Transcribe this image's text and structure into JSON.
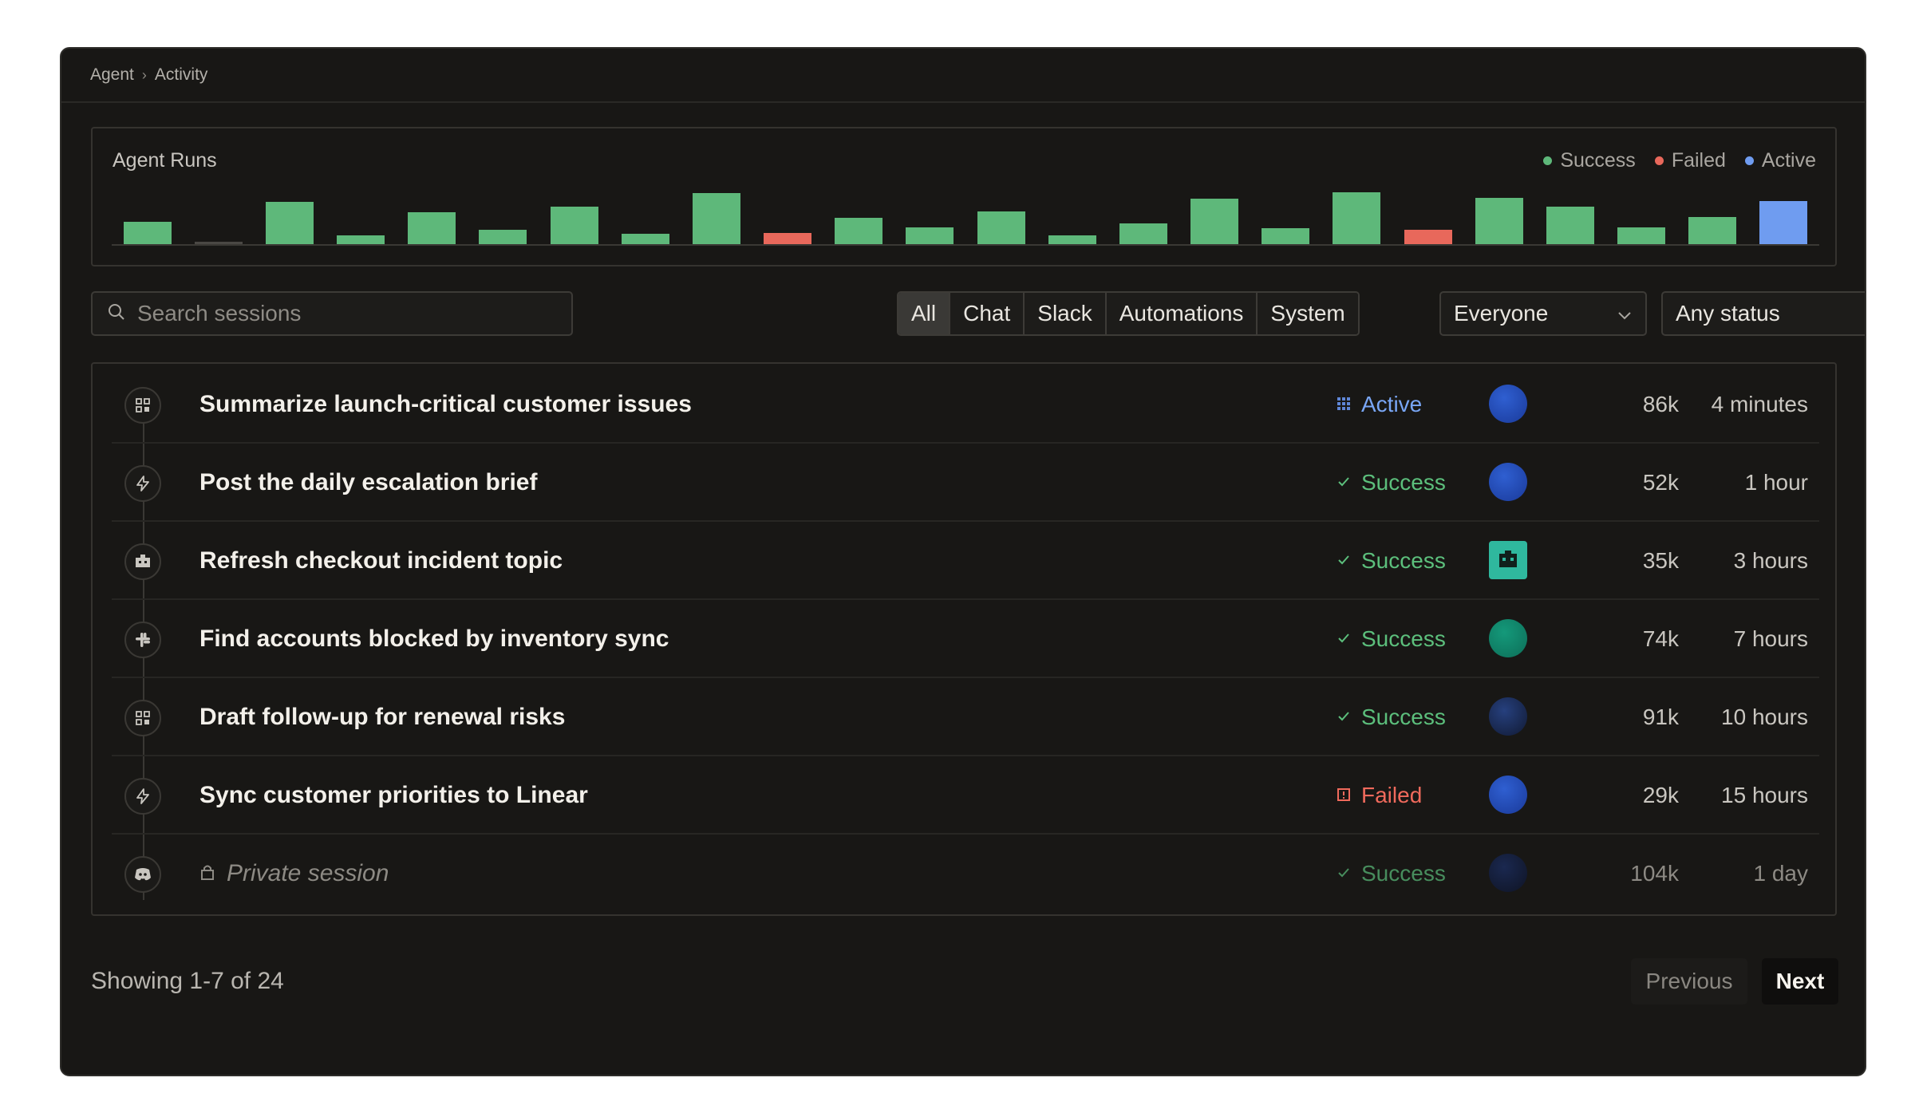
{
  "breadcrumb": {
    "parent": "Agent",
    "separator": "›",
    "current": "Activity"
  },
  "chart": {
    "title": "Agent Runs",
    "legend": [
      {
        "label": "Success",
        "color": "#5eb87a"
      },
      {
        "label": "Failed",
        "color": "#e8685b"
      },
      {
        "label": "Active",
        "color": "#6f9cf0"
      }
    ]
  },
  "chart_data": {
    "type": "bar",
    "title": "Agent Runs",
    "colors": {
      "success": "#5eb87a",
      "failed": "#e8685b",
      "active": "#6f9cf0",
      "empty": "#4a4844"
    },
    "values": [
      20,
      2,
      37,
      8,
      28,
      13,
      33,
      9,
      45,
      10,
      23,
      15,
      29,
      8,
      18,
      40,
      14,
      46,
      13,
      41,
      33,
      15,
      24,
      38
    ],
    "statuses": [
      "success",
      "empty",
      "success",
      "success",
      "success",
      "success",
      "success",
      "success",
      "success",
      "failed",
      "success",
      "success",
      "success",
      "success",
      "success",
      "success",
      "success",
      "success",
      "failed",
      "success",
      "success",
      "success",
      "success",
      "active"
    ],
    "ylim": [
      0,
      50
    ]
  },
  "search": {
    "placeholder": "Search sessions"
  },
  "filters": {
    "tabs": [
      "All",
      "Chat",
      "Slack",
      "Automations",
      "System"
    ],
    "active": "All"
  },
  "owner_select": {
    "value": "Everyone"
  },
  "status_select": {
    "value": "Any status"
  },
  "sessions": [
    {
      "icon": "grid-app-icon",
      "title": "Summarize launch-critical customer issues",
      "status": "Active",
      "status_color": "#79a6f5",
      "avatar": "blue",
      "tokens": "86k",
      "time": "4 minutes"
    },
    {
      "icon": "lightning-icon",
      "title": "Post the daily escalation brief",
      "status": "Success",
      "status_color": "#5cbf7c",
      "avatar": "blue",
      "tokens": "52k",
      "time": "1 hour"
    },
    {
      "icon": "robot-icon",
      "title": "Refresh checkout incident topic",
      "status": "Success",
      "status_color": "#5cbf7c",
      "avatar": "teal-square",
      "tokens": "35k",
      "time": "3 hours"
    },
    {
      "icon": "slack-icon",
      "title": "Find accounts blocked by inventory sync",
      "status": "Success",
      "status_color": "#5cbf7c",
      "avatar": "green",
      "tokens": "74k",
      "time": "7 hours"
    },
    {
      "icon": "grid-app-icon",
      "title": "Draft follow-up for renewal risks",
      "status": "Success",
      "status_color": "#5cbf7c",
      "avatar": "dark-blue",
      "tokens": "91k",
      "time": "10 hours"
    },
    {
      "icon": "lightning-icon",
      "title": "Sync customer priorities to Linear",
      "status": "Failed",
      "status_color": "#f06a5c",
      "avatar": "blue",
      "tokens": "29k",
      "time": "15 hours"
    },
    {
      "icon": "discord-icon",
      "title": "Private session",
      "status": "Success",
      "status_color": "#5cbf7c",
      "avatar": "darkest",
      "tokens": "104k",
      "time": "1 day",
      "private": true
    }
  ],
  "pagination": {
    "summary": "Showing 1-7 of 24",
    "previous": "Previous",
    "next": "Next"
  }
}
